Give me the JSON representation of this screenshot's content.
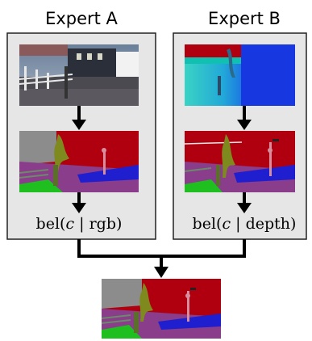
{
  "experts": [
    {
      "title": "Expert A",
      "input_image": "rgb-street-scene-image",
      "segmentation_image": "semantic-segmentation-from-rgb",
      "belief_prefix": "bel(",
      "belief_var": "c",
      "belief_mid": " | ",
      "belief_modality": "rgb",
      "belief_suffix": ")"
    },
    {
      "title": "Expert B",
      "input_image": "depth-map-image",
      "segmentation_image": "semantic-segmentation-from-depth",
      "belief_prefix": "bel(",
      "belief_var": "c",
      "belief_mid": " | ",
      "belief_modality": "depth",
      "belief_suffix": ")"
    }
  ],
  "fused_output_image": "fused-semantic-segmentation",
  "colors": {
    "panel_fill": "#e6e6e6",
    "panel_stroke": "#222222",
    "arrow": "#000000",
    "seg_building": "#b00010",
    "seg_road": "#8a3d8a",
    "seg_sky": "#8c8c8c",
    "seg_vegetation": "#7f8a1e",
    "seg_sidewalk": "#1f1fcf",
    "seg_terrain": "#1fbf1f",
    "depth_near": "#3cc7b8",
    "depth_far": "#1040e0"
  }
}
